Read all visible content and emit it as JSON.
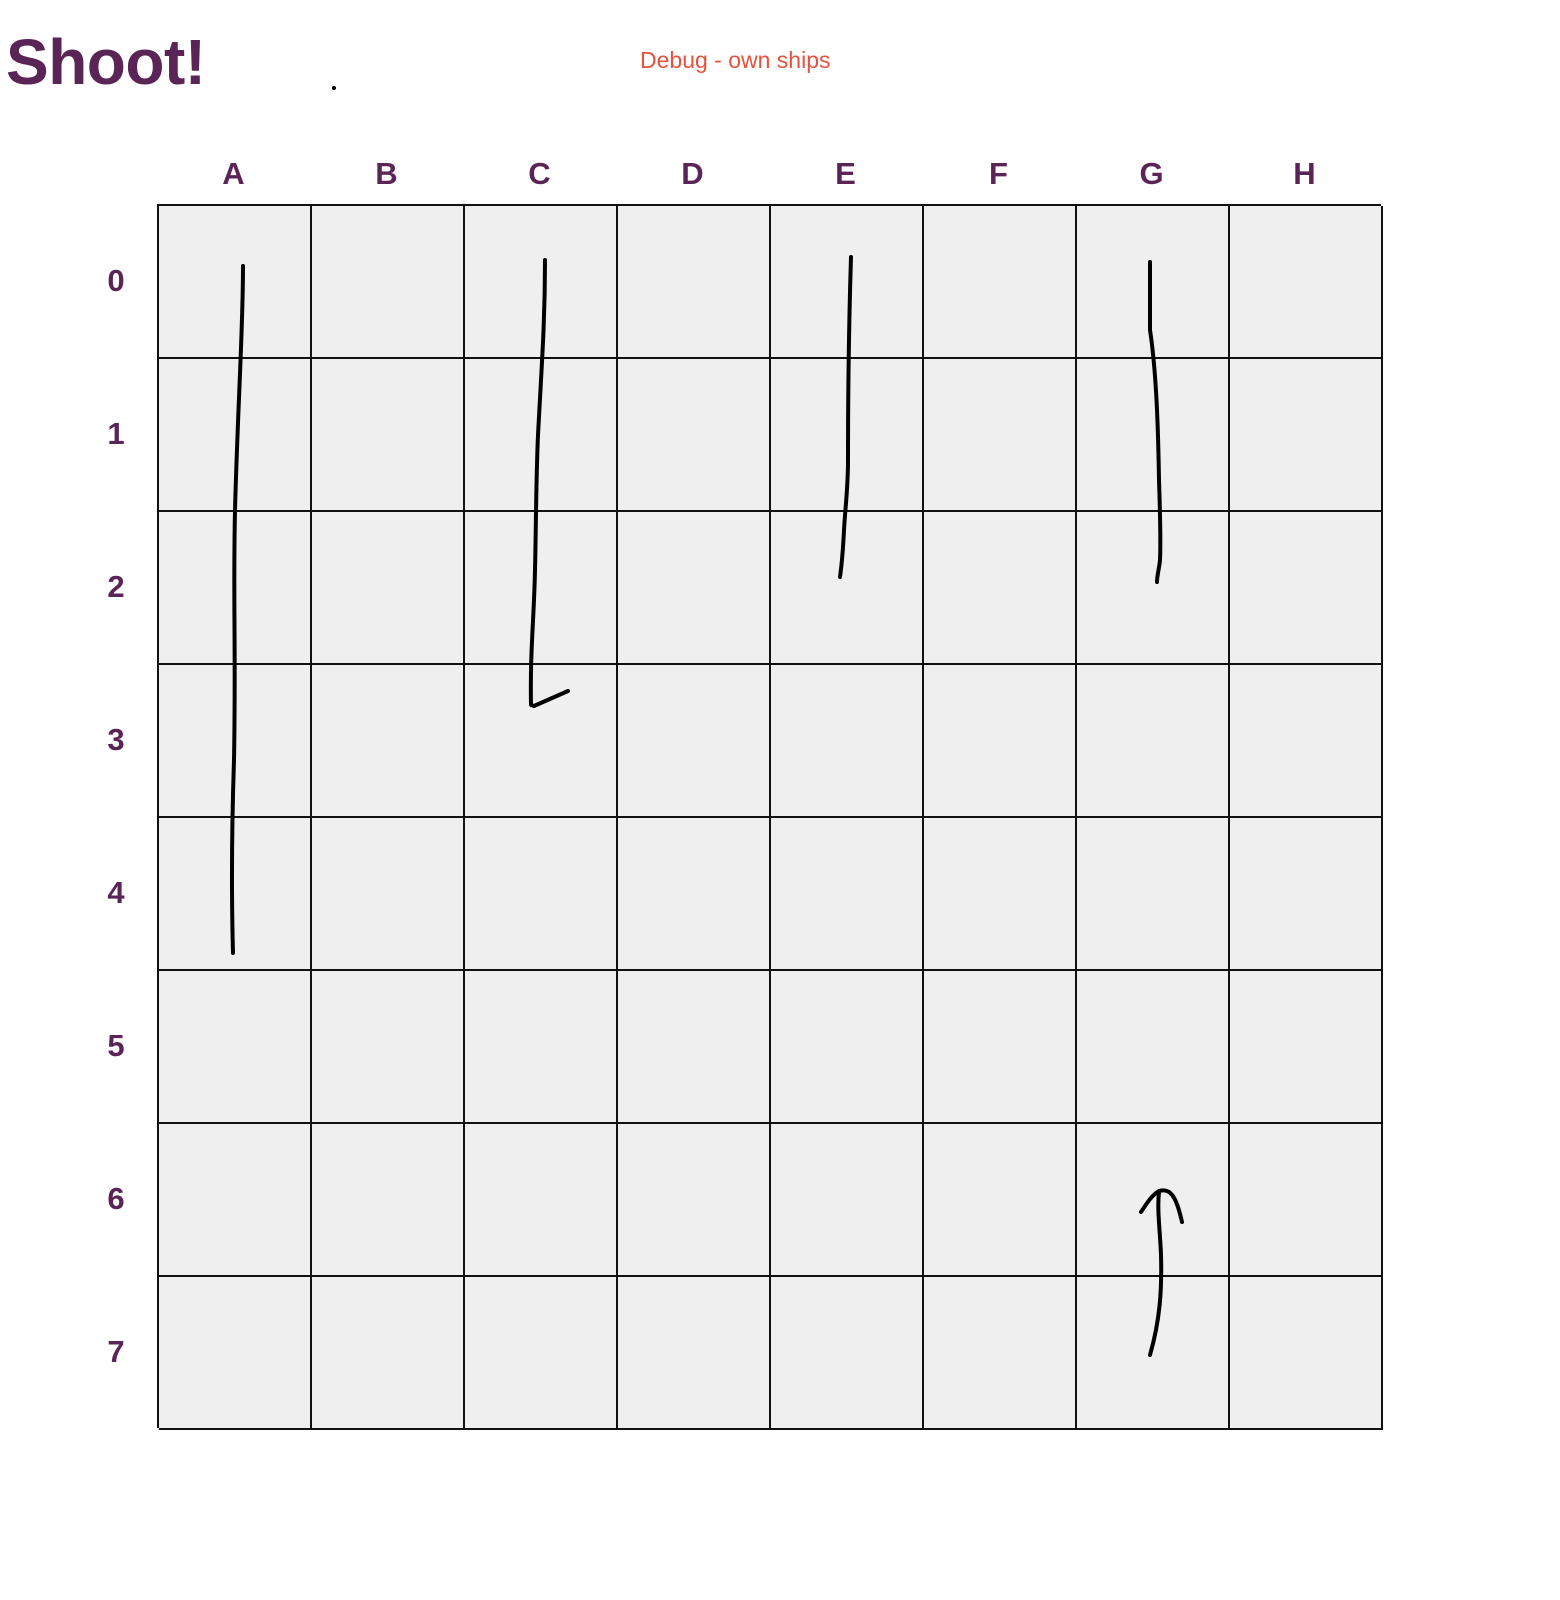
{
  "header": {
    "title": "Shoot!",
    "debug_label": "Debug - own ships"
  },
  "board": {
    "columns": [
      "A",
      "B",
      "C",
      "D",
      "E",
      "F",
      "G",
      "H"
    ],
    "rows": [
      "0",
      "1",
      "2",
      "3",
      "4",
      "5",
      "6",
      "7"
    ]
  },
  "annotations": [
    {
      "name": "ship-stroke-a",
      "covers": "A0-A4"
    },
    {
      "name": "ship-stroke-c",
      "covers": "C0-C3"
    },
    {
      "name": "ship-stroke-e",
      "covers": "E0-E2"
    },
    {
      "name": "ship-stroke-g",
      "covers": "G0-G2"
    },
    {
      "name": "up-arrow-stroke",
      "covers": "G6-G7"
    }
  ],
  "colors": {
    "title": "#5b2457",
    "labels": "#5b2457",
    "debug": "#e5533f",
    "cell": "#efefef",
    "grid_line": "#111111",
    "ink": "#000000"
  }
}
